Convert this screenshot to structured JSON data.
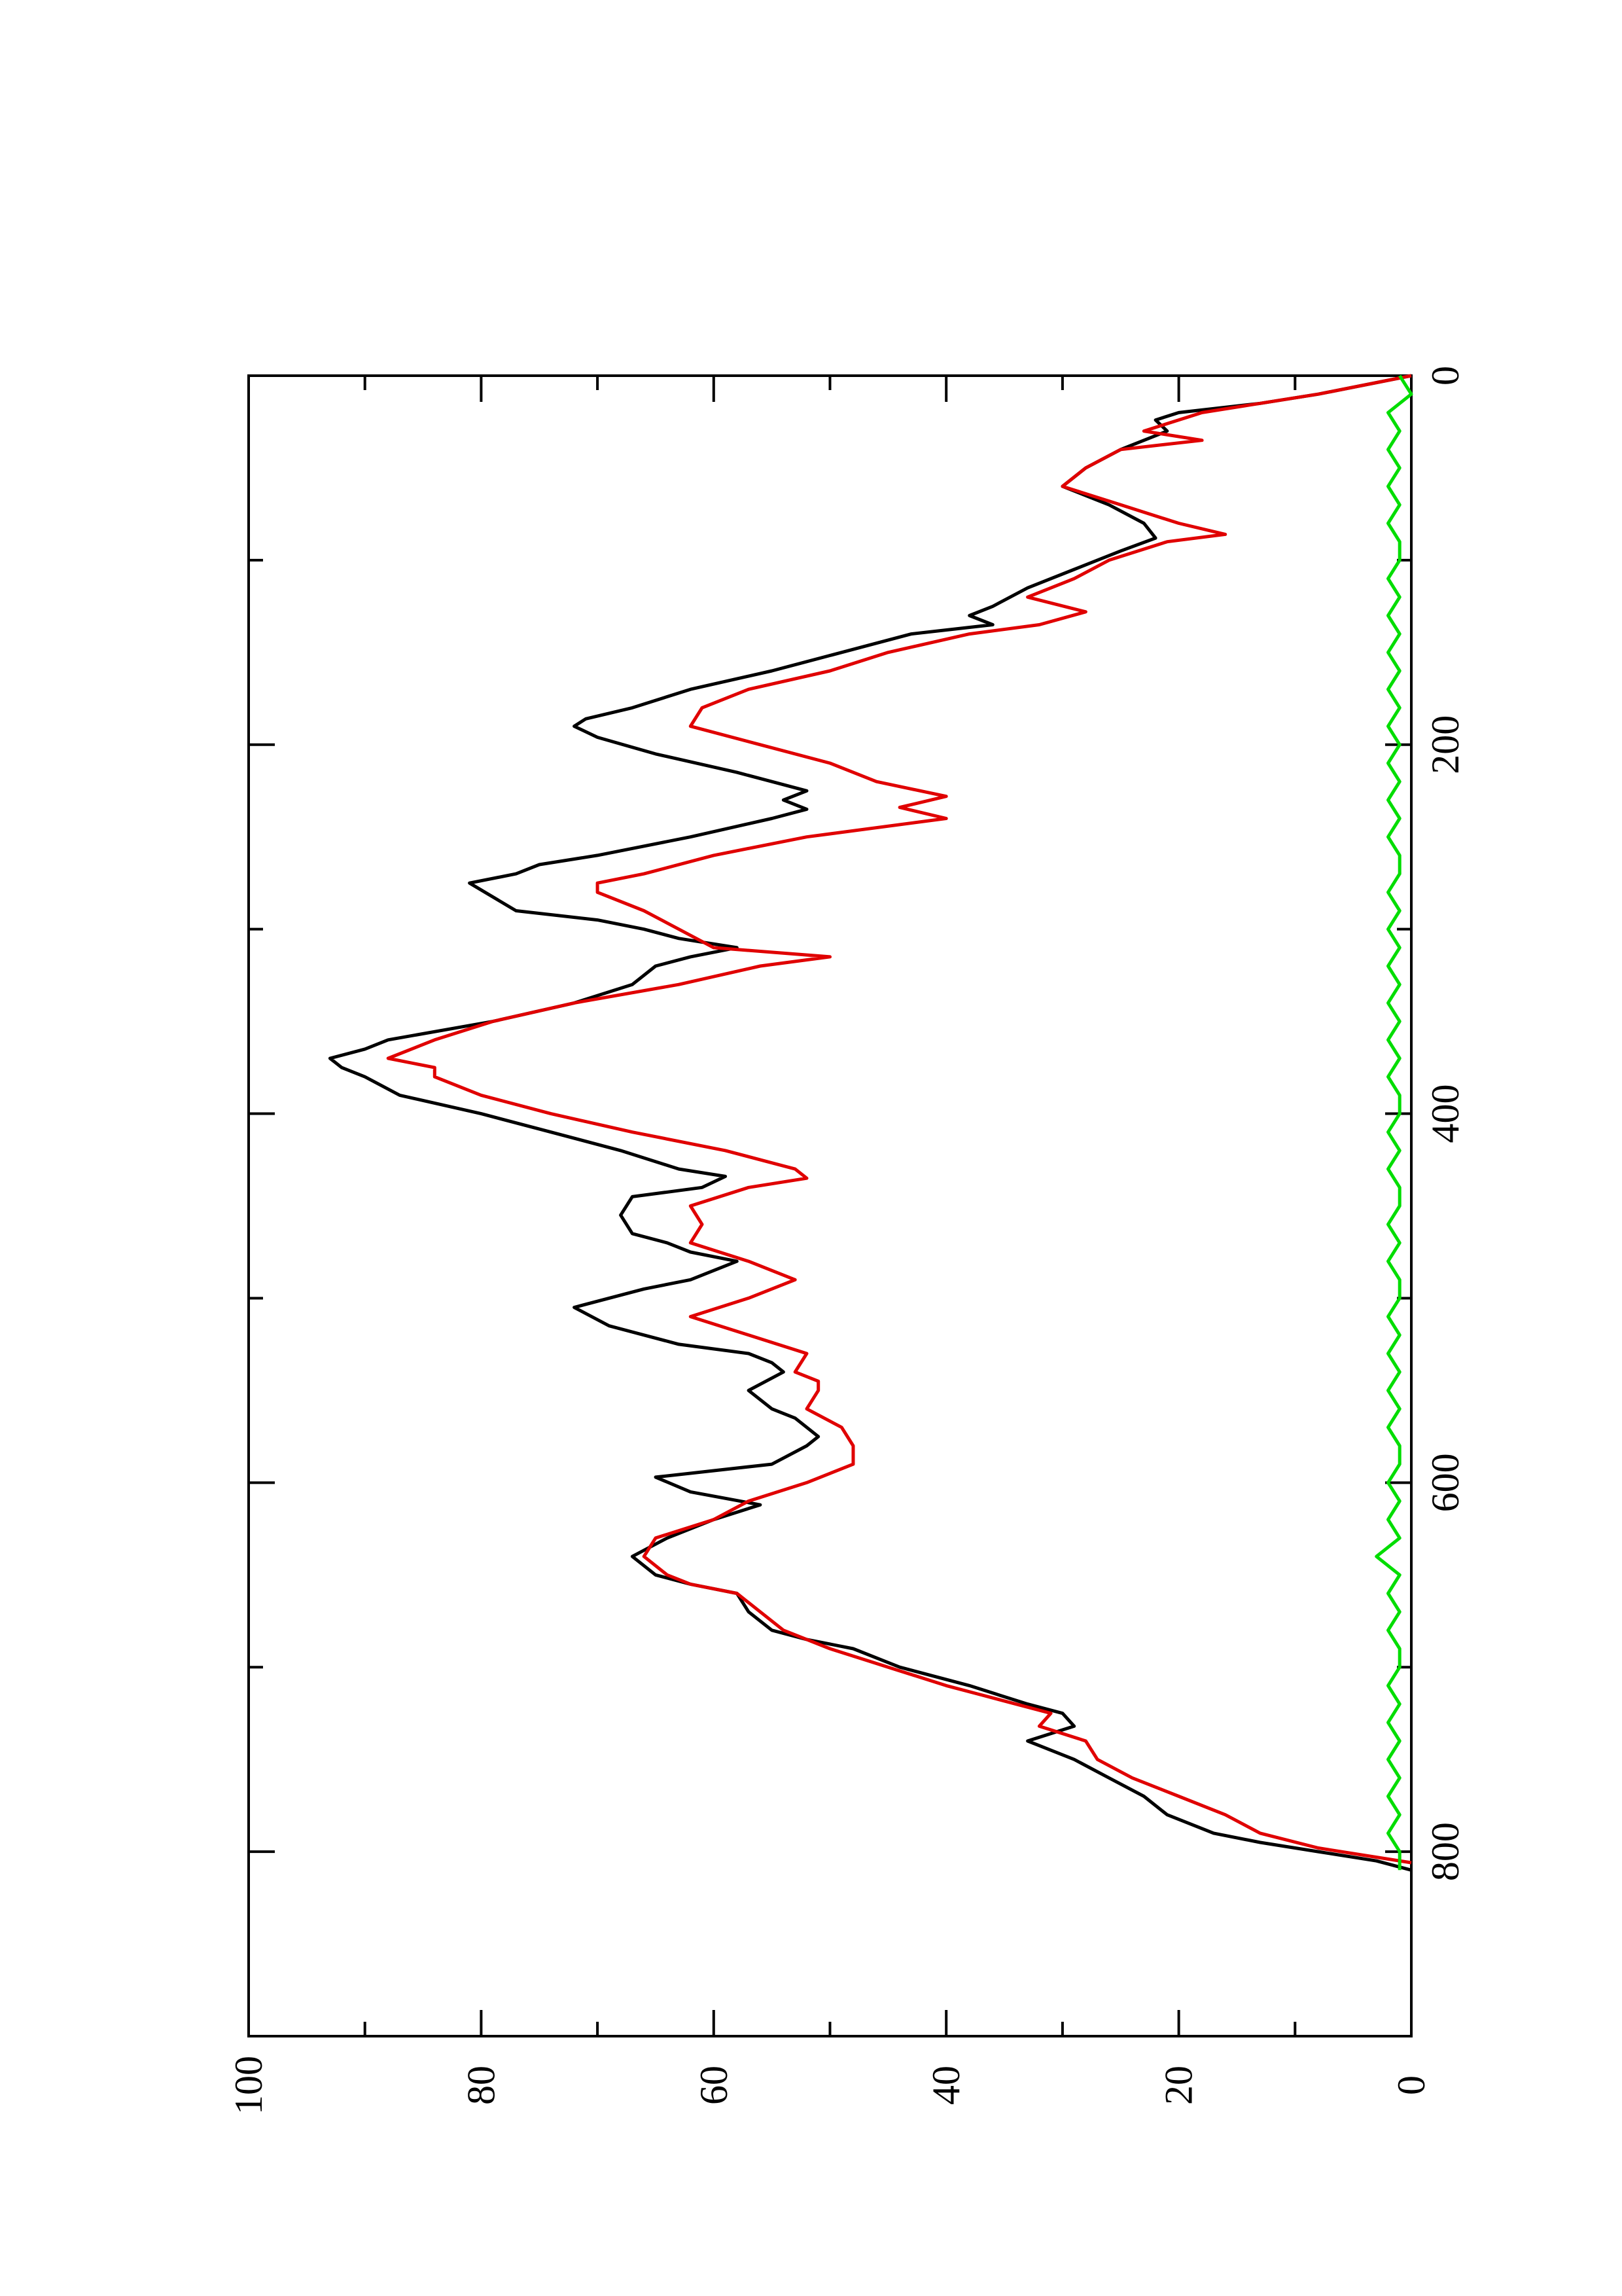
{
  "chart_data": {
    "type": "line",
    "orientation": "rotated 90 degrees counter-clockwise",
    "title": "",
    "xlabel": "",
    "ylabel": "",
    "xlim": [
      0,
      900
    ],
    "ylim": [
      0,
      100
    ],
    "x_ticks": [
      0,
      200,
      400,
      600,
      800
    ],
    "x_minor_ticks": [
      100,
      300,
      500,
      700
    ],
    "y_ticks": [
      0,
      20,
      40,
      60,
      80,
      100
    ],
    "y_minor_ticks": [
      10,
      30,
      50,
      70,
      90
    ],
    "grid": false,
    "series": [
      {
        "color": "#000000",
        "points": [
          [
            0,
            0
          ],
          [
            10,
            8
          ],
          [
            15,
            13
          ],
          [
            20,
            20
          ],
          [
            24,
            22
          ],
          [
            30,
            21
          ],
          [
            40,
            25
          ],
          [
            50,
            28
          ],
          [
            60,
            30
          ],
          [
            70,
            26
          ],
          [
            80,
            23
          ],
          [
            88,
            22
          ],
          [
            95,
            25
          ],
          [
            105,
            29
          ],
          [
            115,
            33
          ],
          [
            125,
            36
          ],
          [
            130,
            38
          ],
          [
            135,
            36
          ],
          [
            140,
            43
          ],
          [
            150,
            49
          ],
          [
            160,
            55
          ],
          [
            170,
            62
          ],
          [
            180,
            67
          ],
          [
            186,
            71
          ],
          [
            190,
            72
          ],
          [
            196,
            70
          ],
          [
            205,
            65
          ],
          [
            215,
            58
          ],
          [
            220,
            55
          ],
          [
            225,
            52
          ],
          [
            230,
            54
          ],
          [
            235,
            52
          ],
          [
            240,
            55
          ],
          [
            250,
            62
          ],
          [
            260,
            70
          ],
          [
            265,
            75
          ],
          [
            270,
            77
          ],
          [
            275,
            81
          ],
          [
            290,
            77
          ],
          [
            295,
            70
          ],
          [
            300,
            66
          ],
          [
            305,
            63
          ],
          [
            310,
            58
          ],
          [
            315,
            62
          ],
          [
            320,
            65
          ],
          [
            330,
            67
          ],
          [
            340,
            72
          ],
          [
            350,
            79
          ],
          [
            360,
            88
          ],
          [
            365,
            90
          ],
          [
            370,
            93
          ],
          [
            375,
            92
          ],
          [
            380,
            90
          ],
          [
            390,
            87
          ],
          [
            400,
            80
          ],
          [
            410,
            74
          ],
          [
            420,
            68
          ],
          [
            430,
            63
          ],
          [
            434,
            59
          ],
          [
            440,
            61
          ],
          [
            445,
            67
          ],
          [
            455,
            68
          ],
          [
            465,
            67
          ],
          [
            470,
            64
          ],
          [
            475,
            62
          ],
          [
            480,
            58
          ],
          [
            490,
            62
          ],
          [
            495,
            66
          ],
          [
            505,
            72
          ],
          [
            515,
            69
          ],
          [
            525,
            63
          ],
          [
            530,
            57
          ],
          [
            535,
            55
          ],
          [
            540,
            54
          ],
          [
            550,
            57
          ],
          [
            560,
            55
          ],
          [
            565,
            53
          ],
          [
            570,
            52
          ],
          [
            575,
            51
          ],
          [
            580,
            52
          ],
          [
            590,
            55
          ],
          [
            597,
            65
          ],
          [
            605,
            62
          ],
          [
            612,
            56
          ],
          [
            620,
            60
          ],
          [
            630,
            64
          ],
          [
            640,
            67
          ],
          [
            650,
            65
          ],
          [
            655,
            62
          ],
          [
            660,
            58
          ],
          [
            670,
            57
          ],
          [
            680,
            55
          ],
          [
            685,
            52
          ],
          [
            690,
            48
          ],
          [
            700,
            44
          ],
          [
            710,
            38
          ],
          [
            720,
            33
          ],
          [
            725,
            30
          ],
          [
            732,
            29
          ],
          [
            740,
            33
          ],
          [
            750,
            29
          ],
          [
            760,
            26
          ],
          [
            770,
            23
          ],
          [
            780,
            21
          ],
          [
            790,
            17
          ],
          [
            795,
            13
          ],
          [
            800,
            8
          ],
          [
            805,
            3
          ],
          [
            810,
            0
          ]
        ]
      },
      {
        "color": "#e00000",
        "points": [
          [
            0,
            0
          ],
          [
            10,
            8
          ],
          [
            20,
            18
          ],
          [
            30,
            23
          ],
          [
            35,
            18
          ],
          [
            40,
            25
          ],
          [
            50,
            28
          ],
          [
            60,
            30
          ],
          [
            70,
            25
          ],
          [
            80,
            20
          ],
          [
            86,
            16
          ],
          [
            90,
            21
          ],
          [
            100,
            26
          ],
          [
            110,
            29
          ],
          [
            120,
            33
          ],
          [
            128,
            28
          ],
          [
            135,
            32
          ],
          [
            140,
            38
          ],
          [
            150,
            45
          ],
          [
            160,
            50
          ],
          [
            170,
            57
          ],
          [
            180,
            61
          ],
          [
            190,
            62
          ],
          [
            200,
            56
          ],
          [
            210,
            50
          ],
          [
            220,
            46
          ],
          [
            228,
            40
          ],
          [
            234,
            44
          ],
          [
            240,
            40
          ],
          [
            250,
            52
          ],
          [
            260,
            60
          ],
          [
            270,
            66
          ],
          [
            275,
            70
          ],
          [
            280,
            70
          ],
          [
            290,
            66
          ],
          [
            300,
            63
          ],
          [
            310,
            60
          ],
          [
            315,
            50
          ],
          [
            320,
            56
          ],
          [
            330,
            63
          ],
          [
            340,
            72
          ],
          [
            350,
            79
          ],
          [
            360,
            84
          ],
          [
            370,
            88
          ],
          [
            375,
            84
          ],
          [
            380,
            84
          ],
          [
            390,
            80
          ],
          [
            400,
            74
          ],
          [
            410,
            67
          ],
          [
            420,
            59
          ],
          [
            430,
            53
          ],
          [
            435,
            52
          ],
          [
            440,
            57
          ],
          [
            450,
            62
          ],
          [
            460,
            61
          ],
          [
            470,
            62
          ],
          [
            480,
            57
          ],
          [
            490,
            53
          ],
          [
            500,
            57
          ],
          [
            510,
            62
          ],
          [
            520,
            57
          ],
          [
            530,
            52
          ],
          [
            540,
            53
          ],
          [
            545,
            51
          ],
          [
            550,
            51
          ],
          [
            560,
            52
          ],
          [
            570,
            49
          ],
          [
            580,
            48
          ],
          [
            590,
            48
          ],
          [
            600,
            52
          ],
          [
            610,
            57
          ],
          [
            620,
            60
          ],
          [
            630,
            65
          ],
          [
            640,
            66
          ],
          [
            650,
            64
          ],
          [
            655,
            62
          ],
          [
            660,
            58
          ],
          [
            670,
            56
          ],
          [
            680,
            54
          ],
          [
            690,
            50
          ],
          [
            700,
            45
          ],
          [
            710,
            40
          ],
          [
            715,
            37
          ],
          [
            725,
            31
          ],
          [
            732,
            32
          ],
          [
            740,
            28
          ],
          [
            750,
            27
          ],
          [
            760,
            24
          ],
          [
            770,
            20
          ],
          [
            780,
            16
          ],
          [
            790,
            13
          ],
          [
            798,
            8
          ],
          [
            806,
            0
          ]
        ]
      },
      {
        "color": "#00dd00",
        "points": [
          [
            0,
            1
          ],
          [
            10,
            0
          ],
          [
            20,
            2
          ],
          [
            30,
            1
          ],
          [
            40,
            2
          ],
          [
            50,
            1
          ],
          [
            60,
            2
          ],
          [
            70,
            1
          ],
          [
            80,
            2
          ],
          [
            90,
            1
          ],
          [
            100,
            1
          ],
          [
            110,
            2
          ],
          [
            120,
            1
          ],
          [
            130,
            2
          ],
          [
            140,
            1
          ],
          [
            150,
            2
          ],
          [
            160,
            1
          ],
          [
            170,
            2
          ],
          [
            180,
            1
          ],
          [
            190,
            2
          ],
          [
            200,
            1
          ],
          [
            210,
            2
          ],
          [
            220,
            1
          ],
          [
            230,
            2
          ],
          [
            240,
            1
          ],
          [
            250,
            2
          ],
          [
            260,
            1
          ],
          [
            270,
            1
          ],
          [
            280,
            2
          ],
          [
            290,
            1
          ],
          [
            300,
            2
          ],
          [
            310,
            1
          ],
          [
            320,
            2
          ],
          [
            330,
            1
          ],
          [
            340,
            2
          ],
          [
            350,
            1
          ],
          [
            360,
            2
          ],
          [
            370,
            1
          ],
          [
            380,
            2
          ],
          [
            390,
            1
          ],
          [
            400,
            1
          ],
          [
            410,
            2
          ],
          [
            420,
            1
          ],
          [
            430,
            2
          ],
          [
            440,
            1
          ],
          [
            450,
            1
          ],
          [
            460,
            2
          ],
          [
            470,
            1
          ],
          [
            480,
            2
          ],
          [
            490,
            1
          ],
          [
            500,
            1
          ],
          [
            510,
            2
          ],
          [
            520,
            1
          ],
          [
            530,
            2
          ],
          [
            540,
            1
          ],
          [
            550,
            2
          ],
          [
            560,
            1
          ],
          [
            570,
            2
          ],
          [
            580,
            1
          ],
          [
            590,
            1
          ],
          [
            600,
            2
          ],
          [
            610,
            1
          ],
          [
            620,
            2
          ],
          [
            630,
            1
          ],
          [
            640,
            3
          ],
          [
            650,
            1
          ],
          [
            660,
            2
          ],
          [
            670,
            1
          ],
          [
            680,
            2
          ],
          [
            690,
            1
          ],
          [
            700,
            1
          ],
          [
            710,
            2
          ],
          [
            720,
            1
          ],
          [
            730,
            2
          ],
          [
            740,
            1
          ],
          [
            750,
            2
          ],
          [
            760,
            1
          ],
          [
            770,
            2
          ],
          [
            780,
            1
          ],
          [
            790,
            2
          ],
          [
            800,
            1
          ],
          [
            810,
            1
          ]
        ]
      }
    ]
  }
}
